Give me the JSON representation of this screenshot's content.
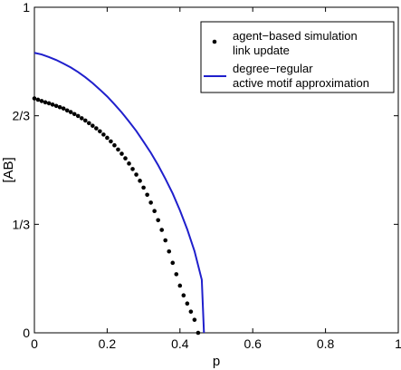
{
  "chart_data": {
    "type": "line",
    "xlabel": "p",
    "ylabel": "[AB]",
    "xlim": [
      0,
      1
    ],
    "ylim": [
      0,
      1
    ],
    "x_ticks": [
      {
        "value": 0,
        "label": "0"
      },
      {
        "value": 0.2,
        "label": "0.2"
      },
      {
        "value": 0.4,
        "label": "0.4"
      },
      {
        "value": 0.6,
        "label": "0.6"
      },
      {
        "value": 0.8,
        "label": "0.8"
      },
      {
        "value": 1,
        "label": "1"
      }
    ],
    "y_ticks": [
      {
        "value": 0,
        "label": "0"
      },
      {
        "value": 0.3333,
        "label": "1/3"
      },
      {
        "value": 0.6667,
        "label": "2/3"
      },
      {
        "value": 1,
        "label": "1"
      }
    ],
    "grid": false,
    "legend_position": "top-right",
    "colors": {
      "simulation": "#000000",
      "approximation": "#1f1fcc"
    },
    "series": [
      {
        "name": "agent−based simulation",
        "name_line2": "link update",
        "style": "dots",
        "x": [
          0,
          0.01,
          0.02,
          0.03,
          0.04,
          0.05,
          0.06,
          0.07,
          0.08,
          0.09,
          0.1,
          0.11,
          0.12,
          0.13,
          0.14,
          0.15,
          0.16,
          0.17,
          0.18,
          0.19,
          0.2,
          0.21,
          0.22,
          0.23,
          0.24,
          0.25,
          0.26,
          0.27,
          0.28,
          0.29,
          0.3,
          0.31,
          0.32,
          0.33,
          0.34,
          0.35,
          0.36,
          0.37,
          0.38,
          0.39,
          0.4,
          0.41,
          0.42,
          0.43,
          0.44,
          0.45
        ],
        "y": [
          0.72,
          0.716,
          0.712,
          0.708,
          0.705,
          0.701,
          0.697,
          0.693,
          0.689,
          0.683,
          0.678,
          0.672,
          0.666,
          0.659,
          0.652,
          0.644,
          0.636,
          0.628,
          0.619,
          0.609,
          0.599,
          0.588,
          0.576,
          0.563,
          0.55,
          0.536,
          0.52,
          0.503,
          0.486,
          0.467,
          0.446,
          0.424,
          0.4,
          0.374,
          0.346,
          0.316,
          0.284,
          0.25,
          0.215,
          0.18,
          0.145,
          0.115,
          0.09,
          0.065,
          0.04,
          0.0
        ]
      },
      {
        "name": "degree−regular",
        "name_line2": "active motif approximation",
        "style": "line",
        "x": [
          0,
          0.02,
          0.04,
          0.06,
          0.08,
          0.1,
          0.12,
          0.14,
          0.16,
          0.18,
          0.2,
          0.22,
          0.24,
          0.26,
          0.28,
          0.3,
          0.32,
          0.34,
          0.36,
          0.38,
          0.4,
          0.42,
          0.44,
          0.46,
          0.466
        ],
        "y": [
          0.86,
          0.855,
          0.847,
          0.838,
          0.827,
          0.815,
          0.801,
          0.785,
          0.767,
          0.747,
          0.726,
          0.702,
          0.677,
          0.649,
          0.62,
          0.587,
          0.553,
          0.515,
          0.473,
          0.428,
          0.376,
          0.318,
          0.251,
          0.163,
          0.0
        ]
      }
    ]
  }
}
